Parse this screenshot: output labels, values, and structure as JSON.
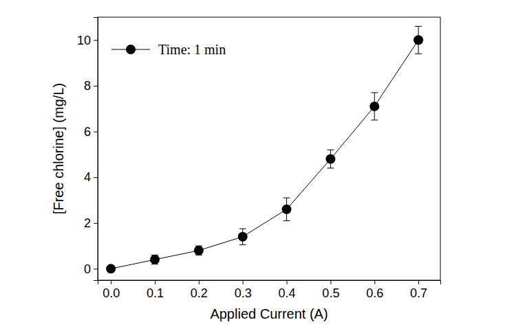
{
  "chart_data": {
    "type": "line",
    "x_label": "Applied Current (A)",
    "y_label": "[Free chlorine] (mg/L)",
    "x": [
      0,
      0.1,
      0.2,
      0.3,
      0.4,
      0.5,
      0.6,
      0.7
    ],
    "series": [
      {
        "name": "Time: 1 min",
        "color": "#000000",
        "marker": "circle",
        "line_style": "solid",
        "values": [
          0,
          0.4,
          0.8,
          1.4,
          2.6,
          4.8,
          7.1,
          10.0
        ],
        "errors": [
          0,
          0.2,
          0.2,
          0.35,
          0.5,
          0.4,
          0.6,
          0.6
        ]
      }
    ],
    "xlim": [
      -0.03,
      0.75
    ],
    "ylim": [
      -0.5,
      11
    ],
    "xticks": [
      {
        "value": 0,
        "label": "0.0"
      },
      0.1,
      0.2,
      0.3,
      0.4,
      0.5,
      0.6,
      0.7
    ],
    "yticks": [
      0,
      2,
      4,
      6,
      8,
      10
    ],
    "legend": "upper left",
    "grid": false
  }
}
